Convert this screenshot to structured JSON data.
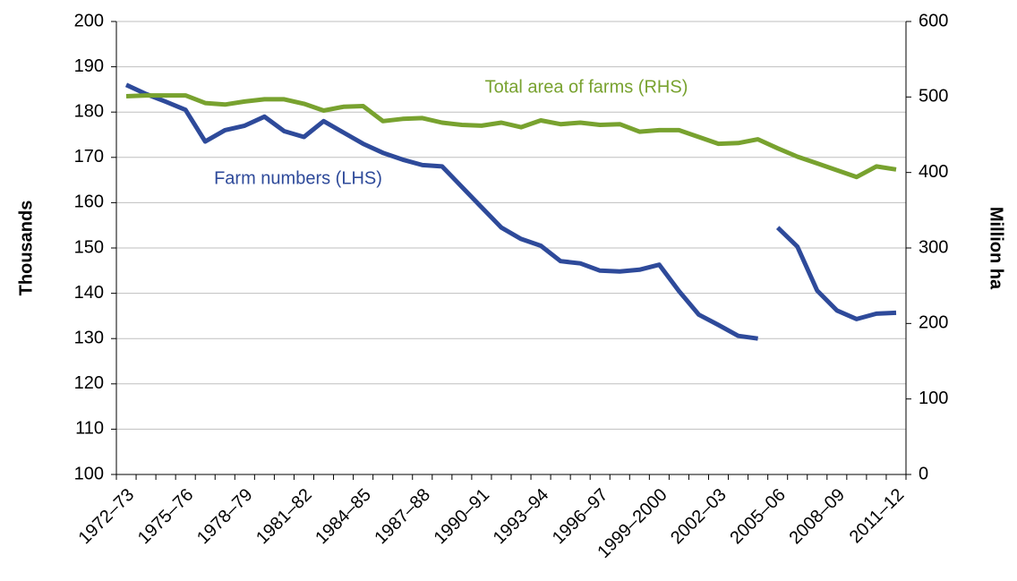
{
  "chart_data": {
    "type": "line",
    "categories": [
      "1972–73",
      null,
      null,
      "1975–76",
      null,
      null,
      "1978–79",
      null,
      null,
      "1981–82",
      null,
      null,
      "1984–85",
      null,
      null,
      "1987–88",
      null,
      null,
      "1990–91",
      null,
      null,
      "1993–94",
      null,
      null,
      "1996–97",
      null,
      null,
      "1999–2000",
      null,
      null,
      "2002–03",
      null,
      null,
      "2005–06",
      null,
      null,
      "2008–09",
      null,
      null,
      "2011–12"
    ],
    "y_label": "Thousands",
    "y2_label": "Million ha",
    "ylim": [
      100,
      200
    ],
    "yticks": [
      100,
      110,
      120,
      130,
      140,
      150,
      160,
      170,
      180,
      190,
      200
    ],
    "y2lim": [
      0,
      600
    ],
    "y2ticks": [
      0,
      100,
      200,
      300,
      400,
      500,
      600
    ],
    "grid": true,
    "series": [
      {
        "name": "Farm numbers (LHS)",
        "color": "#2e4a9a",
        "values": [
          186,
          184,
          182.3,
          180.5,
          173.5,
          176,
          177,
          179,
          175.8,
          174.5,
          178,
          175.5,
          173,
          171,
          169.5,
          168.3,
          168,
          163.5,
          159,
          154.5,
          152,
          150.5,
          147.1,
          146.6,
          145,
          144.8,
          145.2,
          146.3,
          140.5,
          135.3,
          133,
          130.6,
          130,
          null,
          null,
          null,
          null,
          null,
          null,
          null
        ]
      },
      {
        "color": "#2e4a9a",
        "values": [
          null,
          null,
          null,
          null,
          null,
          null,
          null,
          null,
          null,
          null,
          null,
          null,
          null,
          null,
          null,
          null,
          null,
          null,
          null,
          null,
          null,
          null,
          null,
          null,
          null,
          null,
          null,
          null,
          null,
          null,
          null,
          null,
          null,
          154.5,
          150.3,
          140.6,
          136.2,
          134.3,
          135.5,
          135.7
        ]
      },
      {
        "name": "Total area of farms (RHS)",
        "color": "#78a22f",
        "axis": "y2",
        "values": [
          501,
          502,
          502,
          502,
          492,
          490,
          494,
          497,
          497,
          491,
          482,
          487,
          488,
          468,
          471,
          472,
          466,
          463,
          462,
          466,
          460,
          469,
          464,
          466,
          463,
          464,
          454,
          456,
          456,
          447,
          438,
          439,
          444,
          432,
          421,
          412,
          403,
          394,
          408,
          404
        ]
      }
    ]
  }
}
